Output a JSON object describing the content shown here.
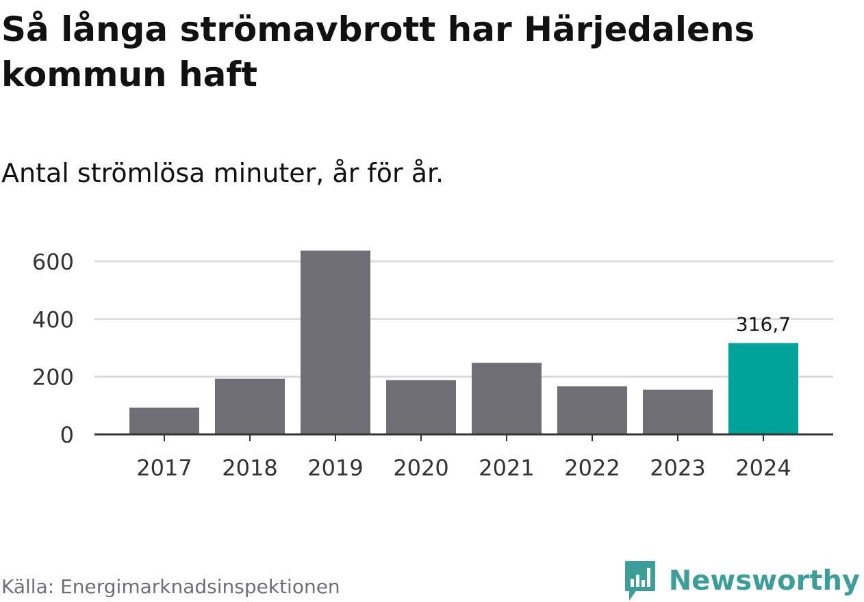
{
  "header": {
    "title": "Så långa strömavbrott har Härjedalens kommun haft",
    "subtitle": "Antal strömlösa minuter, år för år."
  },
  "footer": {
    "source": "Källa: Energimarknadsinspektionen",
    "brand": "Newsworthy",
    "brand_icon": "newsworthy-logo-icon"
  },
  "colors": {
    "bar_default": "#706f75",
    "bar_highlight": "#00a39a",
    "grid": "#dddddd",
    "axis": "#333333",
    "brand": "#3c9e98"
  },
  "chart_data": {
    "type": "bar",
    "categories": [
      "2017",
      "2018",
      "2019",
      "2020",
      "2021",
      "2022",
      "2023",
      "2024"
    ],
    "values": [
      93,
      193,
      637,
      188,
      248,
      167,
      155,
      316.7
    ],
    "highlight_index": 7,
    "data_labels": [
      {
        "index": 7,
        "text": "316,7"
      }
    ],
    "ylim": [
      0,
      600
    ],
    "yticks": [
      0,
      200,
      400,
      600
    ],
    "ytick_labels": [
      "0",
      "200",
      "400",
      "600"
    ],
    "grid": true,
    "xlabel": "",
    "ylabel": ""
  }
}
